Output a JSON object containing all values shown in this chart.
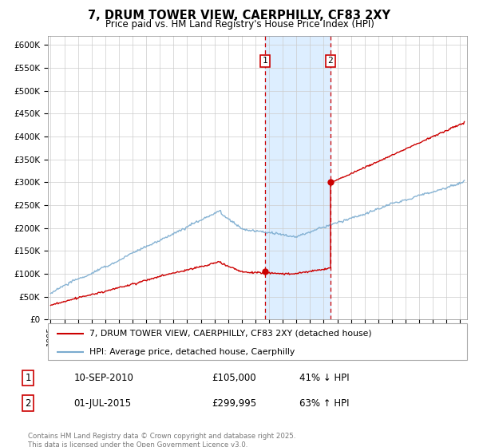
{
  "title": "7, DRUM TOWER VIEW, CAERPHILLY, CF83 2XY",
  "subtitle": "Price paid vs. HM Land Registry's House Price Index (HPI)",
  "ylabel_ticks": [
    "£0",
    "£50K",
    "£100K",
    "£150K",
    "£200K",
    "£250K",
    "£300K",
    "£350K",
    "£400K",
    "£450K",
    "£500K",
    "£550K",
    "£600K"
  ],
  "yticks": [
    0,
    50000,
    100000,
    150000,
    200000,
    250000,
    300000,
    350000,
    400000,
    450000,
    500000,
    550000,
    600000
  ],
  "sale1_x": 2010.7,
  "sale1_price": 105000,
  "sale1_label": "1",
  "sale2_x": 2015.5,
  "sale2_price": 299995,
  "sale2_label": "2",
  "legend_line1": "7, DRUM TOWER VIEW, CAERPHILLY, CF83 2XY (detached house)",
  "legend_line2": "HPI: Average price, detached house, Caerphilly",
  "table_row1": [
    "1",
    "10-SEP-2010",
    "£105,000",
    "41% ↓ HPI"
  ],
  "table_row2": [
    "2",
    "01-JUL-2015",
    "£299,995",
    "63% ↑ HPI"
  ],
  "footer": "Contains HM Land Registry data © Crown copyright and database right 2025.\nThis data is licensed under the Open Government Licence v3.0.",
  "color_red": "#cc0000",
  "color_blue": "#7aabcf",
  "color_shade": "#ddeeff",
  "xlim_start": 1994.8,
  "xlim_end": 2025.5,
  "ylim": [
    0,
    620000
  ]
}
